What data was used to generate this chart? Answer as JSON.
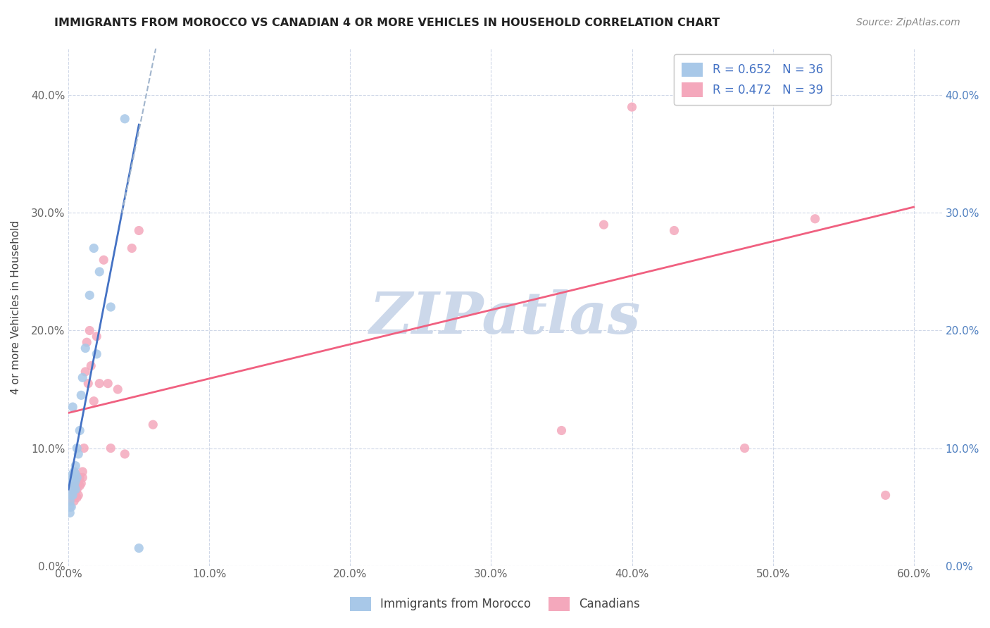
{
  "title": "IMMIGRANTS FROM MOROCCO VS CANADIAN 4 OR MORE VEHICLES IN HOUSEHOLD CORRELATION CHART",
  "source": "Source: ZipAtlas.com",
  "ylabel_label": "4 or more Vehicles in Household",
  "legend_label1": "Immigrants from Morocco",
  "legend_label2": "Canadians",
  "R1": 0.652,
  "N1": 36,
  "R2": 0.472,
  "N2": 39,
  "color_blue": "#a8c8e8",
  "color_pink": "#f4a8bc",
  "line_blue": "#4472c4",
  "line_pink": "#f06080",
  "line_dashed_color": "#a0b4cc",
  "watermark": "ZIPatlas",
  "watermark_color": "#ccd8ea",
  "blue_scatter_x": [
    0.001,
    0.001,
    0.001,
    0.002,
    0.002,
    0.002,
    0.002,
    0.003,
    0.003,
    0.003,
    0.003,
    0.003,
    0.004,
    0.004,
    0.004,
    0.004,
    0.004,
    0.005,
    0.005,
    0.005,
    0.005,
    0.006,
    0.006,
    0.007,
    0.008,
    0.009,
    0.01,
    0.012,
    0.015,
    0.018,
    0.022,
    0.03,
    0.04,
    0.05,
    0.02,
    0.003
  ],
  "blue_scatter_y": [
    0.045,
    0.05,
    0.055,
    0.06,
    0.065,
    0.068,
    0.05,
    0.07,
    0.075,
    0.072,
    0.078,
    0.06,
    0.065,
    0.07,
    0.075,
    0.08,
    0.068,
    0.072,
    0.078,
    0.085,
    0.065,
    0.075,
    0.1,
    0.095,
    0.115,
    0.145,
    0.16,
    0.185,
    0.23,
    0.27,
    0.25,
    0.22,
    0.38,
    0.015,
    0.18,
    0.135
  ],
  "pink_scatter_x": [
    0.001,
    0.002,
    0.003,
    0.004,
    0.005,
    0.005,
    0.006,
    0.006,
    0.007,
    0.007,
    0.008,
    0.008,
    0.009,
    0.01,
    0.01,
    0.011,
    0.012,
    0.013,
    0.014,
    0.015,
    0.016,
    0.018,
    0.02,
    0.022,
    0.025,
    0.028,
    0.03,
    0.035,
    0.04,
    0.045,
    0.05,
    0.06,
    0.35,
    0.38,
    0.4,
    0.43,
    0.48,
    0.53,
    0.58
  ],
  "pink_scatter_y": [
    0.055,
    0.06,
    0.065,
    0.055,
    0.06,
    0.068,
    0.058,
    0.065,
    0.07,
    0.06,
    0.068,
    0.075,
    0.07,
    0.075,
    0.08,
    0.1,
    0.165,
    0.19,
    0.155,
    0.2,
    0.17,
    0.14,
    0.195,
    0.155,
    0.26,
    0.155,
    0.1,
    0.15,
    0.095,
    0.27,
    0.285,
    0.12,
    0.115,
    0.29,
    0.39,
    0.285,
    0.1,
    0.295,
    0.06
  ],
  "xlim": [
    0.0,
    0.62
  ],
  "ylim": [
    0.0,
    0.44
  ],
  "xticks": [
    0.0,
    0.1,
    0.2,
    0.3,
    0.4,
    0.5,
    0.6
  ],
  "yticks": [
    0.0,
    0.1,
    0.2,
    0.3,
    0.4
  ],
  "blue_trend_x": [
    0.0,
    0.05
  ],
  "blue_trend_y": [
    0.065,
    0.375
  ],
  "pink_trend_x": [
    0.0,
    0.6
  ],
  "pink_trend_y": [
    0.13,
    0.305
  ],
  "dashed_line_x": [
    0.038,
    0.062
  ],
  "dashed_line_y": [
    0.3,
    0.44
  ]
}
